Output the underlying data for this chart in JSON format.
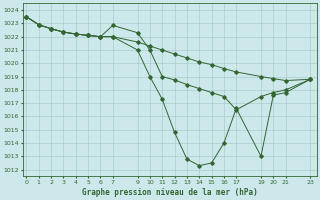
{
  "title": "Graphe pression niveau de la mer (hPa)",
  "bg_color": "#cce8ea",
  "grid_color": "#aacccc",
  "line_color": "#336633",
  "ylim": [
    1011.5,
    1024.5
  ],
  "xlim": [
    -0.3,
    23.5
  ],
  "ytick_labels": [
    "1012",
    "1013",
    "1014",
    "1015",
    "1016",
    "1017",
    "1018",
    "1019",
    "1020",
    "1021",
    "1022",
    "1023",
    "1024"
  ],
  "ytick_vals": [
    1012,
    1013,
    1014,
    1015,
    1016,
    1017,
    1018,
    1019,
    1020,
    1021,
    1022,
    1023,
    1024
  ],
  "xtick_vals": [
    0,
    1,
    2,
    3,
    4,
    5,
    6,
    7,
    9,
    10,
    11,
    12,
    13,
    14,
    15,
    16,
    17,
    19,
    20,
    21,
    23
  ],
  "xtick_labels": [
    "0",
    "1",
    "2",
    "3",
    "4",
    "5",
    "6",
    "7",
    "9",
    "10",
    "11",
    "12",
    "13",
    "14",
    "15",
    "16",
    "17",
    "19",
    "20",
    "21",
    "23"
  ],
  "series": [
    {
      "x": [
        0,
        1,
        2,
        3,
        4,
        5,
        6,
        7,
        9,
        10,
        11,
        12,
        13,
        14,
        15,
        16,
        17,
        19,
        20,
        21,
        23
      ],
      "y": [
        1023.5,
        1022.9,
        1022.6,
        1022.35,
        1022.2,
        1022.1,
        1022.0,
        1022.0,
        1021.6,
        1021.3,
        1021.0,
        1020.7,
        1020.4,
        1020.1,
        1019.9,
        1019.6,
        1019.35,
        1019.0,
        1018.85,
        1018.7,
        1018.8
      ]
    },
    {
      "x": [
        0,
        1,
        2,
        3,
        4,
        5,
        6,
        7,
        9,
        10,
        11,
        12,
        13,
        14,
        15,
        16,
        17,
        19,
        20,
        21,
        23
      ],
      "y": [
        1023.5,
        1022.9,
        1022.6,
        1022.35,
        1022.2,
        1022.1,
        1022.0,
        1022.85,
        1022.3,
        1021.0,
        1019.0,
        1018.75,
        1018.4,
        1018.1,
        1017.8,
        1017.5,
        1016.5,
        1017.5,
        1017.8,
        1018.0,
        1018.8
      ]
    },
    {
      "x": [
        0,
        1,
        2,
        3,
        4,
        5,
        6,
        7,
        9,
        10,
        11,
        12,
        13,
        14,
        15,
        16,
        17,
        19,
        20,
        21,
        23
      ],
      "y": [
        1023.5,
        1022.9,
        1022.6,
        1022.35,
        1022.2,
        1022.1,
        1022.0,
        1022.0,
        1021.0,
        1019.0,
        1017.3,
        1014.8,
        1012.8,
        1012.3,
        1012.5,
        1014.0,
        1016.6,
        1013.0,
        1017.6,
        1017.8,
        1018.8
      ]
    }
  ]
}
